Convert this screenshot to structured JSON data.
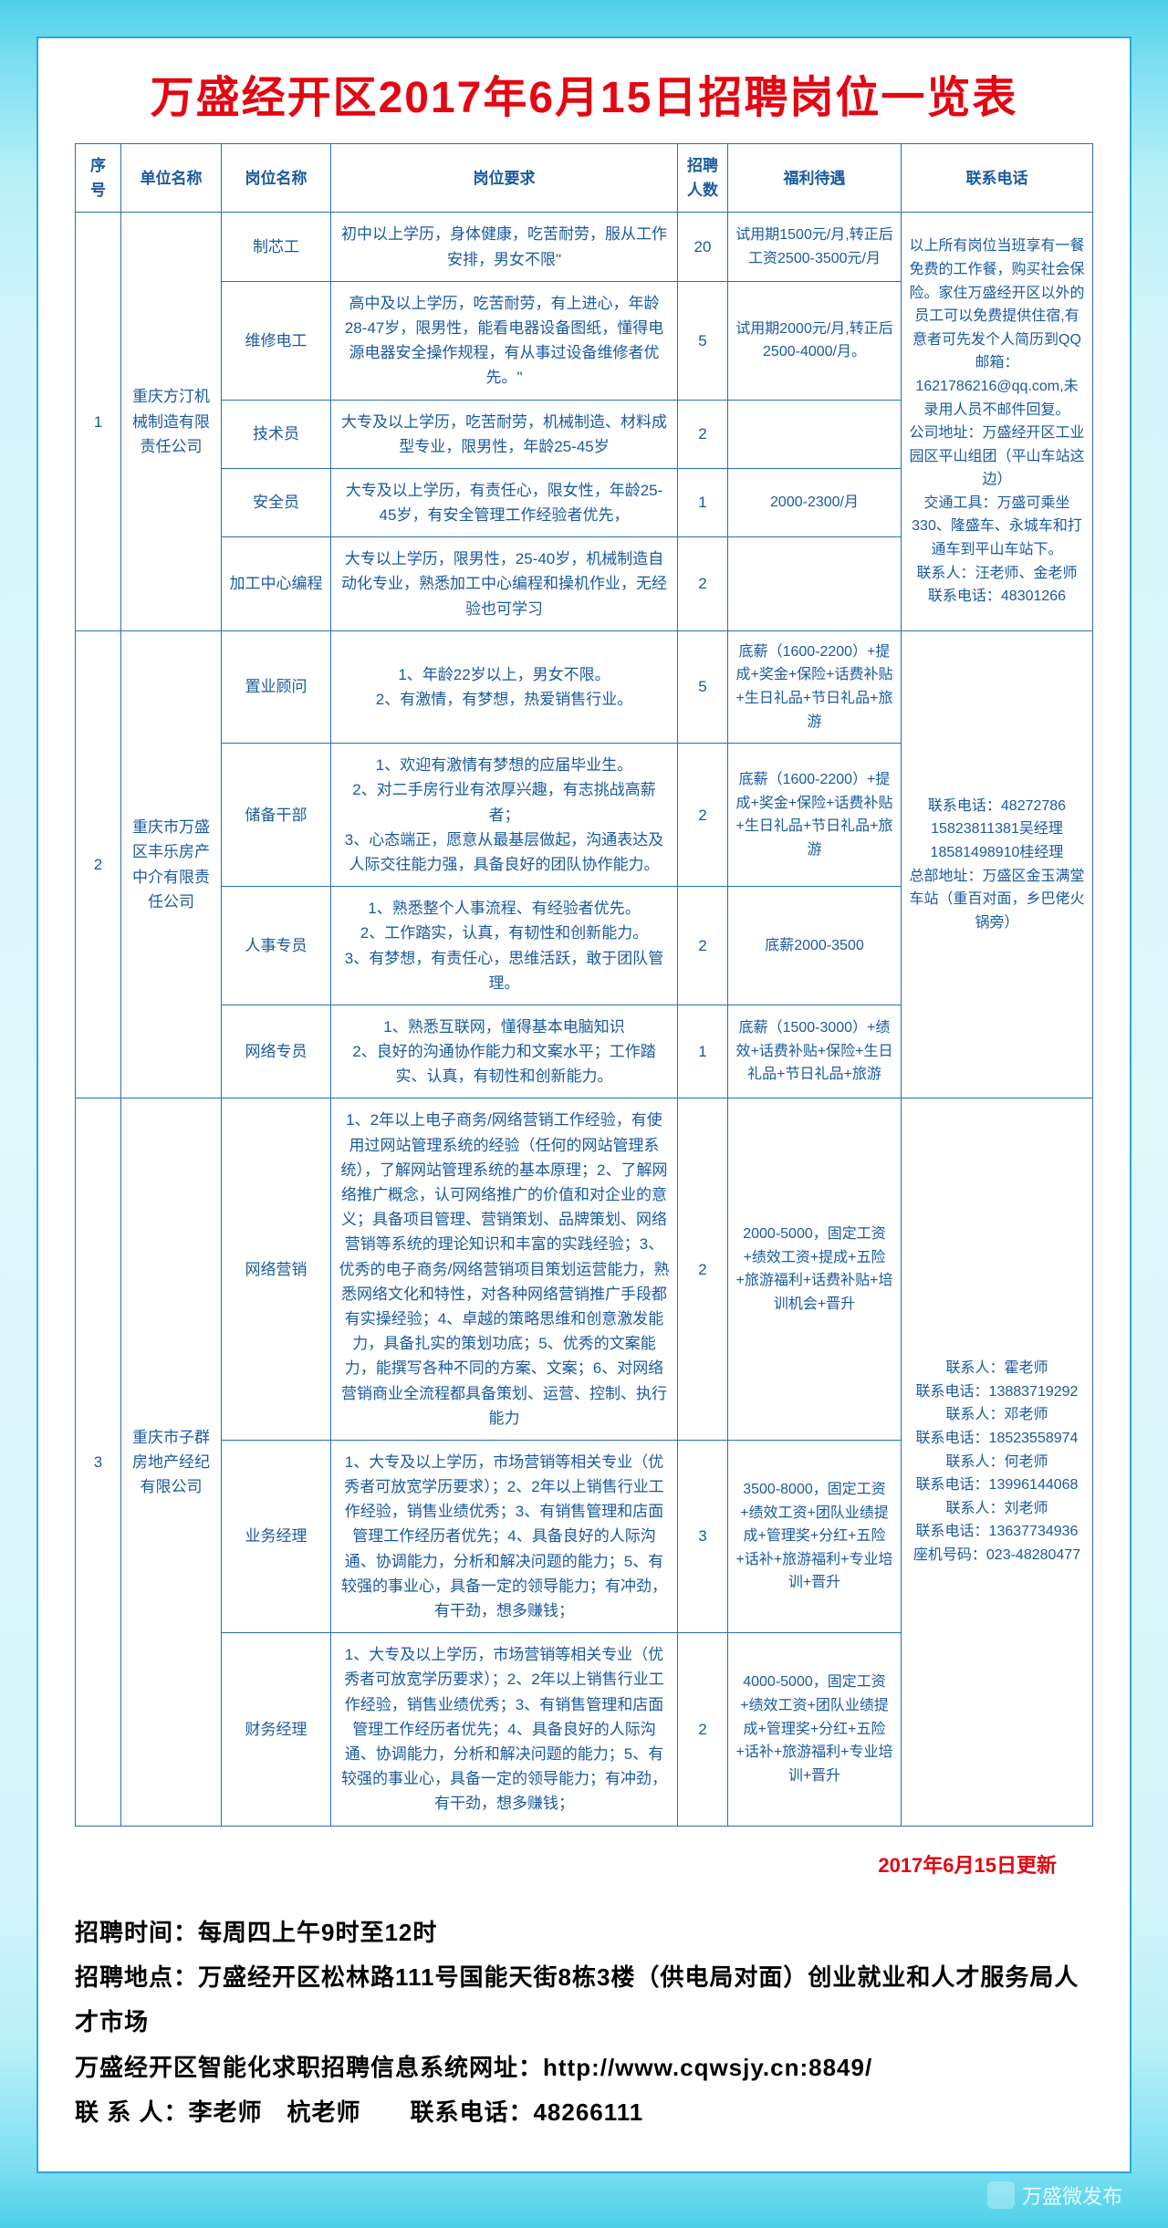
{
  "title": "万盛经开区2017年6月15日招聘岗位一览表",
  "headers": {
    "seq": "序号",
    "company": "单位名称",
    "position": "岗位名称",
    "requirement": "岗位要求",
    "count": "招聘人数",
    "benefit": "福利待遇",
    "contact": "联系电话"
  },
  "groups": [
    {
      "seq": "1",
      "company": "重庆方汀机械制造有限责任公司",
      "contact": "以上所有岗位当班享有一餐免费的工作餐，购买社会保险。家住万盛经开区以外的员工可以免费提供住宿,有意者可先发个人简历到QQ邮箱：1621786216@qq.com,未录用人员不邮件回复。\n公司地址：万盛经开区工业园区平山组团（平山车站这边）\n交通工具：万盛可乘坐330、隆盛车、永城车和打通车到平山车站下。\n联系人：汪老师、金老师　　联系电话：48301266",
      "rows": [
        {
          "position": "制芯工",
          "requirement": "初中以上学历，身体健康，吃苦耐劳，服从工作安排，男女不限\"",
          "count": "20",
          "benefit": "试用期1500元/月,转正后工资2500-3500元/月"
        },
        {
          "position": "维修电工",
          "requirement": "高中及以上学历，吃苦耐劳，有上进心，年龄28-47岁，限男性，能看电器设备图纸，懂得电源电器安全操作规程，有从事过设备维修者优先。\"",
          "count": "5",
          "benefit": "试用期2000元/月,转正后2500-4000/月。"
        },
        {
          "position": "技术员",
          "requirement": "大专及以上学历，吃苦耐劳，机械制造、材料成型专业，限男性，年龄25-45岁",
          "count": "2",
          "benefit": ""
        },
        {
          "position": "安全员",
          "requirement": "大专及以上学历，有责任心，限女性，年龄25-45岁，有安全管理工作经验者优先，",
          "count": "1",
          "benefit": "2000-2300/月"
        },
        {
          "position": "加工中心编程",
          "requirement": "大专以上学历，限男性，25-40岁，机械制造自动化专业，熟悉加工中心编程和操机作业，无经验也可学习",
          "count": "2",
          "benefit": ""
        }
      ]
    },
    {
      "seq": "2",
      "company": "重庆市万盛区丰乐房产中介有限责任公司",
      "contact": "联系电话：48272786\n15823811381吴经理\n18581498910桂经理\n总部地址：万盛区金玉满堂车站（重百对面，乡巴佬火锅旁）",
      "rows": [
        {
          "position": "置业顾问",
          "requirement": "1、年龄22岁以上，男女不限。\n2、有激情，有梦想，热爱销售行业。",
          "count": "5",
          "benefit": "底薪（1600-2200）+提成+奖金+保险+话费补贴+生日礼品+节日礼品+旅游"
        },
        {
          "position": "储备干部",
          "requirement": "1、欢迎有激情有梦想的应届毕业生。\n2、对二手房行业有浓厚兴趣，有志挑战高薪者；\n3、心态端正，愿意从最基层做起，沟通表达及人际交往能力强，具备良好的团队协作能力。",
          "count": "2",
          "benefit": "底薪（1600-2200）+提成+奖金+保险+话费补贴+生日礼品+节日礼品+旅游"
        },
        {
          "position": "人事专员",
          "requirement": "1、熟悉整个人事流程、有经验者优先。\n2、工作踏实，认真，有韧性和创新能力。\n3、有梦想，有责任心，思维活跃，敢于团队管理。",
          "count": "2",
          "benefit": "底薪2000-3500"
        },
        {
          "position": "网络专员",
          "requirement": "1、熟悉互联网，懂得基本电脑知识\n2、良好的沟通协作能力和文案水平；工作踏实、认真，有韧性和创新能力。",
          "count": "1",
          "benefit": "底薪（1500-3000）+绩效+话费补贴+保险+生日礼品+节日礼品+旅游"
        }
      ]
    },
    {
      "seq": "3",
      "company": "重庆市子群房地产经纪有限公司",
      "contact": "联系人：霍老师\n联系电话：13883719292\n联系人：邓老师\n联系电话：18523558974\n联系人：何老师\n联系电话：13996144068\n联系人：刘老师\n联系电话：13637734936\n座机号码：023-48280477",
      "rows": [
        {
          "position": "网络营销",
          "requirement": "1、2年以上电子商务/网络营销工作经验，有使用过网站管理系统的经验（任何的网站管理系统），了解网站管理系统的基本原理；2、了解网络推广概念，认可网络推广的价值和对企业的意义；具备项目管理、营销策划、品牌策划、网络营销等系统的理论知识和丰富的实践经验；3、优秀的电子商务/网络营销项目策划运营能力，熟悉网络文化和特性，对各种网络营销推广手段都有实操经验；4、卓越的策略思维和创意激发能力，具备扎实的策划功底；5、优秀的文案能力，能撰写各种不同的方案、文案；6、对网络营销商业全流程都具备策划、运营、控制、执行能力",
          "count": "2",
          "benefit": "2000-5000，固定工资+绩效工资+提成+五险+旅游福利+话费补贴+培训机会+晋升"
        },
        {
          "position": "业务经理",
          "requirement": "1、大专及以上学历，市场营销等相关专业（优秀者可放宽学历要求）；2、2年以上销售行业工作经验，销售业绩优秀；3、有销售管理和店面管理工作经历者优先；4、具备良好的人际沟通、协调能力，分析和解决问题的能力；5、有较强的事业心，具备一定的领导能力；有冲劲，有干劲，想多赚钱；",
          "count": "3",
          "benefit": "3500-8000，固定工资+绩效工资+团队业绩提成+管理奖+分红+五险+话补+旅游福利+专业培训+晋升"
        },
        {
          "position": "财务经理",
          "requirement": "1、大专及以上学历，市场营销等相关专业（优秀者可放宽学历要求）；2、2年以上销售行业工作经验，销售业绩优秀；3、有销售管理和店面管理工作经历者优先；4、具备良好的人际沟通、协调能力，分析和解决问题的能力；5、有较强的事业心，具备一定的领导能力；有冲劲，有干劲，想多赚钱；",
          "count": "2",
          "benefit": "4000-5000，固定工资+绩效工资+团队业绩提成+管理奖+分红+五险+话补+旅游福利+专业培训+晋升"
        }
      ]
    }
  ],
  "update_note": "2017年6月15日更新",
  "footer": {
    "l1": "招聘时间：每周四上午9时至12时",
    "l2": "招聘地点：万盛经开区松林路111号国能天街8栋3楼（供电局对面）创业就业和人才服务局人才市场",
    "l3": "万盛经开区智能化求职招聘信息系统网址：http://www.cqwsjy.cn:8849/",
    "l4": "联 系 人：李老师　杭老师　　联系电话：48266111"
  },
  "watermark": "万盛微发布"
}
